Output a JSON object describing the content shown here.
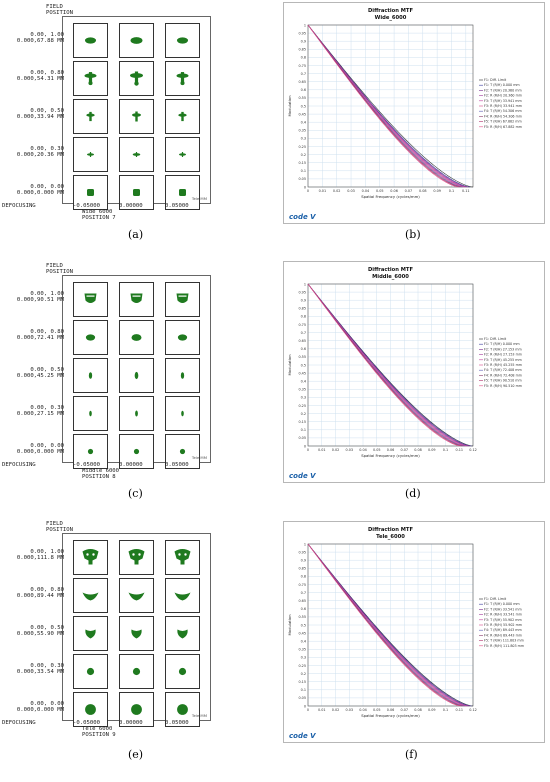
{
  "figure": {
    "panels": [
      {
        "id": "a",
        "caption": "(a)",
        "field_heading": [
          "FIELD",
          "POSITION"
        ],
        "fields": [
          {
            "line1": "0.00, 1.00",
            "line2": "0.000,67.88 MM"
          },
          {
            "line1": "0.00, 0.80",
            "line2": "0.000,54.31 MM"
          },
          {
            "line1": "0.00, 0.50",
            "line2": "0.000,33.94 MM"
          },
          {
            "line1": "0.00, 0.30",
            "line2": "0.000,20.36 MM"
          },
          {
            "line1": "0.00, 0.00",
            "line2": "0.000,0.000 MM"
          }
        ],
        "defocus_label": "DEFOCUSING",
        "defocus_values": [
          "-0.05000",
          "0.00000",
          "0.05000"
        ],
        "config_name": "Wide 6000",
        "position_label": "POSITION 7",
        "scale_label": "Tele",
        "scale_units": "MM",
        "spot_shapes": [
          "lens",
          "cross",
          "cross-small",
          "dash",
          "square"
        ]
      },
      {
        "id": "c",
        "caption": "(c)",
        "field_heading": [
          "FIELD",
          "POSITION"
        ],
        "fields": [
          {
            "line1": "0.00, 1.00",
            "line2": "0.000,90.51 MM"
          },
          {
            "line1": "0.00, 0.80",
            "line2": "0.000,72.41 MM"
          },
          {
            "line1": "0.00, 0.50",
            "line2": "0.000,45.25 MM"
          },
          {
            "line1": "0.00, 0.30",
            "line2": "0.000,27.15 MM"
          },
          {
            "line1": "0.00, 0.00",
            "line2": "0.000,0.000 MM"
          }
        ],
        "defocus_label": "DEFOCUSING",
        "defocus_values": [
          "-0.05000",
          "0.00000",
          "0.05000"
        ],
        "config_name": "Middle 6000",
        "position_label": "POSITION 8",
        "scale_label": "Tele",
        "scale_units": "MM",
        "spot_shapes": [
          "cup",
          "blob",
          "drop",
          "drop-small",
          "dot"
        ]
      },
      {
        "id": "e",
        "caption": "(e)",
        "field_heading": [
          "FIELD",
          "POSITION"
        ],
        "fields": [
          {
            "line1": "0.00, 1.00",
            "line2": "0.000,111.8 MM"
          },
          {
            "line1": "0.00, 0.80",
            "line2": "0.000,89.44 MM"
          },
          {
            "line1": "0.00, 0.50",
            "line2": "0.000,55.90 MM"
          },
          {
            "line1": "0.00, 0.30",
            "line2": "0.000,33.54 MM"
          },
          {
            "line1": "0.00, 0.00",
            "line2": "0.000,0.000 MM"
          }
        ],
        "defocus_label": "DEFOCUSING",
        "defocus_values": [
          "-0.05000",
          "0.00000",
          "0.05000"
        ],
        "config_name": "Tele 6000",
        "position_label": "POSITION 9",
        "scale_label": "Tele",
        "scale_units": "MM",
        "spot_shapes": [
          "bell",
          "wing",
          "heart",
          "round",
          "big-dot"
        ]
      }
    ],
    "chart_data": [
      {
        "id": "b",
        "caption": "(b)",
        "type": "line",
        "title": "Diffraction MTF",
        "subtitle": "Wide_6000",
        "xlabel": "Spatial Frequency (cycles/mm)",
        "ylabel": "Modulation",
        "xlim": [
          0,
          0.115
        ],
        "ylim": [
          0,
          1
        ],
        "x_ticks": [
          "0",
          "0.01",
          "0.02",
          "0.03",
          "0.04",
          "0.05",
          "0.06",
          "0.07",
          "0.08",
          "0.09",
          "0.1",
          "0.11"
        ],
        "x_tick_values": [
          0,
          0.01,
          0.02,
          0.03,
          0.04,
          0.05,
          0.06,
          0.07,
          0.08,
          0.09,
          0.1,
          0.11
        ],
        "y_ticks": [
          "0",
          "0.05",
          "0.1",
          "0.15",
          "0.2",
          "0.25",
          "0.3",
          "0.35",
          "0.4",
          "0.45",
          "0.5",
          "0.55",
          "0.6",
          "0.65",
          "0.7",
          "0.75",
          "0.8",
          "0.85",
          "0.9",
          "0.95",
          "1"
        ],
        "grid": true,
        "legend_position": "right",
        "logo": "code V",
        "series": [
          {
            "name": "F1: Diff. Limit",
            "color": "#2b2b2b",
            "cutoff": 0.115
          },
          {
            "name": "F1: T (R/H) 0.000 mm",
            "color": "#3b3b9e",
            "cutoff": 0.113
          },
          {
            "name": "F2: T (R/H) 20.360 mm",
            "color": "#7a2d8e",
            "cutoff": 0.112
          },
          {
            "name": "F2: R (R/H) 20.360 mm",
            "color": "#a23a9c",
            "cutoff": 0.111
          },
          {
            "name": "F3: T (R/H) 33.941 mm",
            "color": "#c2409f",
            "cutoff": 0.11
          },
          {
            "name": "F3: R (R/H) 33.941 mm",
            "color": "#d4478d",
            "cutoff": 0.109
          },
          {
            "name": "F4: T (R/H) 54.306 mm",
            "color": "#5a5ab2",
            "cutoff": 0.108
          },
          {
            "name": "F4: R (R/H) 54.306 mm",
            "color": "#8b3a6b",
            "cutoff": 0.107
          },
          {
            "name": "F5: T (R/H) 67.882 mm",
            "color": "#b0306a",
            "cutoff": 0.106
          },
          {
            "name": "F5: R (R/H) 67.882 mm",
            "color": "#e0508a",
            "cutoff": 0.105
          }
        ]
      },
      {
        "id": "d",
        "caption": "(d)",
        "type": "line",
        "title": "Diffraction MTF",
        "subtitle": "Middle_6000",
        "xlabel": "Spatial Frequency (cycles/mm)",
        "ylabel": "Modulation",
        "xlim": [
          0,
          0.12
        ],
        "ylim": [
          0,
          1
        ],
        "x_ticks": [
          "0",
          "0.01",
          "0.02",
          "0.03",
          "0.04",
          "0.05",
          "0.06",
          "0.07",
          "0.08",
          "0.09",
          "0.1",
          "0.11",
          "0.12"
        ],
        "x_tick_values": [
          0,
          0.01,
          0.02,
          0.03,
          0.04,
          0.05,
          0.06,
          0.07,
          0.08,
          0.09,
          0.1,
          0.11,
          0.12
        ],
        "y_ticks": [
          "0",
          "0.05",
          "0.1",
          "0.15",
          "0.2",
          "0.25",
          "0.3",
          "0.35",
          "0.4",
          "0.45",
          "0.5",
          "0.55",
          "0.6",
          "0.65",
          "0.7",
          "0.75",
          "0.8",
          "0.85",
          "0.9",
          "0.95",
          "1"
        ],
        "grid": true,
        "legend_position": "right",
        "logo": "code V",
        "series": [
          {
            "name": "F1: Diff. Limit",
            "color": "#2b2b2b",
            "cutoff": 0.12
          },
          {
            "name": "F1: T (R/H) 0.000 mm",
            "color": "#3b3b9e",
            "cutoff": 0.119
          },
          {
            "name": "F2: T (R/H) 27.153 mm",
            "color": "#7a2d8e",
            "cutoff": 0.118
          },
          {
            "name": "F2: R (R/H) 27.153 mm",
            "color": "#a23a9c",
            "cutoff": 0.117
          },
          {
            "name": "F3: T (R/H) 45.255 mm",
            "color": "#c2409f",
            "cutoff": 0.116
          },
          {
            "name": "F3: R (R/H) 45.255 mm",
            "color": "#d4478d",
            "cutoff": 0.115
          },
          {
            "name": "F4: T (R/H) 72.408 mm",
            "color": "#5a5ab2",
            "cutoff": 0.114
          },
          {
            "name": "F4: R (R/H) 72.408 mm",
            "color": "#8b3a6b",
            "cutoff": 0.113
          },
          {
            "name": "F5: T (R/H) 90.510 mm",
            "color": "#b0306a",
            "cutoff": 0.112
          },
          {
            "name": "F5: R (R/H) 90.510 mm",
            "color": "#e0508a",
            "cutoff": 0.111
          }
        ]
      },
      {
        "id": "f",
        "caption": "(f)",
        "type": "line",
        "title": "Diffraction MTF",
        "subtitle": "Tele_6000",
        "xlabel": "Spatial Frequency (cycles/mm)",
        "ylabel": "Modulation",
        "xlim": [
          0,
          0.12
        ],
        "ylim": [
          0,
          1
        ],
        "x_ticks": [
          "0",
          "0.01",
          "0.02",
          "0.03",
          "0.04",
          "0.05",
          "0.06",
          "0.07",
          "0.08",
          "0.09",
          "0.1",
          "0.11",
          "0.12"
        ],
        "x_tick_values": [
          0,
          0.01,
          0.02,
          0.03,
          0.04,
          0.05,
          0.06,
          0.07,
          0.08,
          0.09,
          0.1,
          0.11,
          0.12
        ],
        "y_ticks": [
          "0",
          "0.05",
          "0.1",
          "0.15",
          "0.2",
          "0.25",
          "0.3",
          "0.35",
          "0.4",
          "0.45",
          "0.5",
          "0.55",
          "0.6",
          "0.65",
          "0.7",
          "0.75",
          "0.8",
          "0.85",
          "0.9",
          "0.95",
          "1"
        ],
        "grid": true,
        "legend_position": "right",
        "logo": "code V",
        "series": [
          {
            "name": "F1: Diff. Limit",
            "color": "#2b2b2b",
            "cutoff": 0.12
          },
          {
            "name": "F1: T (R/H) 0.000 mm",
            "color": "#3b3b9e",
            "cutoff": 0.119
          },
          {
            "name": "F2: T (R/H) 33.541 mm",
            "color": "#7a2d8e",
            "cutoff": 0.118
          },
          {
            "name": "F2: R (R/H) 33.541 mm",
            "color": "#a23a9c",
            "cutoff": 0.117
          },
          {
            "name": "F3: T (R/H) 55.902 mm",
            "color": "#c2409f",
            "cutoff": 0.116
          },
          {
            "name": "F3: R (R/H) 55.902 mm",
            "color": "#d4478d",
            "cutoff": 0.115
          },
          {
            "name": "F4: T (R/H) 89.443 mm",
            "color": "#5a5ab2",
            "cutoff": 0.114
          },
          {
            "name": "F4: R (R/H) 89.443 mm",
            "color": "#8b3a6b",
            "cutoff": 0.113
          },
          {
            "name": "F5: T (R/H) 111.803 mm",
            "color": "#b0306a",
            "cutoff": 0.112
          },
          {
            "name": "F5: R (R/H) 111.803 mm",
            "color": "#e0508a",
            "cutoff": 0.111
          }
        ]
      }
    ],
    "colors": {
      "spot": "#1f7a1f",
      "grid": "#cfe0ef",
      "logo": "#1a5fa8"
    }
  }
}
